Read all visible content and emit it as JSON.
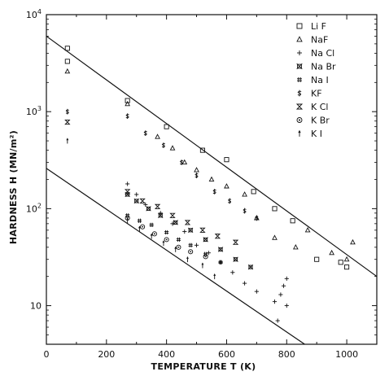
{
  "chart_data": {
    "type": "scatter",
    "title": "",
    "xlabel": "TEMPERATURE T    (K)",
    "ylabel": "HARDNESS  H (MN/m²)",
    "xlim": [
      0,
      1100
    ],
    "ylim": [
      4,
      10000
    ],
    "y_scale": "log",
    "x_ticks": [
      0,
      200,
      400,
      600,
      800,
      1000
    ],
    "x_tick_labels": [
      "0",
      "200",
      "400",
      "600",
      "800",
      "1000"
    ],
    "y_ticks": [
      10,
      100,
      1000,
      10000
    ],
    "y_tick_labels": [
      {
        "base": "",
        "exp": "",
        "text": "10"
      },
      {
        "base": "10",
        "exp": "2",
        "text": ""
      },
      {
        "base": "10",
        "exp": "3",
        "text": ""
      },
      {
        "base": "10",
        "exp": "4",
        "text": ""
      }
    ],
    "legend_position": "top-right",
    "reference_lines": [
      {
        "x": [
          0,
          1100
        ],
        "y": [
          6000,
          20
        ]
      },
      {
        "x": [
          0,
          860
        ],
        "y": [
          260,
          4
        ]
      }
    ],
    "series": [
      {
        "name": "Li F",
        "symbol": "square",
        "points": [
          [
            70,
            4500
          ],
          [
            70,
            3300
          ],
          [
            270,
            1300
          ],
          [
            400,
            700
          ],
          [
            520,
            400
          ],
          [
            600,
            320
          ],
          [
            690,
            150
          ],
          [
            760,
            100
          ],
          [
            820,
            75
          ],
          [
            900,
            30
          ],
          [
            980,
            28
          ],
          [
            1000,
            25
          ]
        ]
      },
      {
        "name": "NaF",
        "symbol": "triangle",
        "points": [
          [
            70,
            2600
          ],
          [
            270,
            1200
          ],
          [
            370,
            550
          ],
          [
            420,
            420
          ],
          [
            460,
            300
          ],
          [
            500,
            250
          ],
          [
            550,
            200
          ],
          [
            600,
            170
          ],
          [
            660,
            140
          ],
          [
            700,
            80
          ],
          [
            760,
            50
          ],
          [
            830,
            40
          ],
          [
            870,
            60
          ],
          [
            950,
            35
          ],
          [
            1000,
            30
          ],
          [
            1020,
            45
          ]
        ]
      },
      {
        "name": "Na Cl",
        "symbol": "plus",
        "points": [
          [
            270,
            180
          ],
          [
            300,
            140
          ],
          [
            330,
            110
          ],
          [
            380,
            90
          ],
          [
            420,
            70
          ],
          [
            460,
            58
          ],
          [
            500,
            42
          ],
          [
            540,
            35
          ],
          [
            580,
            28
          ],
          [
            620,
            22
          ],
          [
            660,
            17
          ],
          [
            700,
            14
          ],
          [
            760,
            11
          ],
          [
            780,
            13
          ],
          [
            790,
            16
          ],
          [
            800,
            19
          ],
          [
            770,
            7
          ],
          [
            800,
            10
          ]
        ]
      },
      {
        "name": "Na Br",
        "symbol": "square-star",
        "points": [
          [
            270,
            140
          ],
          [
            300,
            120
          ],
          [
            340,
            100
          ],
          [
            380,
            85
          ],
          [
            430,
            72
          ],
          [
            480,
            60
          ],
          [
            530,
            48
          ],
          [
            580,
            38
          ],
          [
            630,
            30
          ],
          [
            680,
            25
          ]
        ]
      },
      {
        "name": "Na I",
        "symbol": "hash",
        "points": [
          [
            270,
            85
          ],
          [
            310,
            75
          ],
          [
            350,
            68
          ],
          [
            400,
            57
          ],
          [
            440,
            48
          ],
          [
            480,
            42
          ],
          [
            530,
            34
          ],
          [
            580,
            28
          ]
        ]
      },
      {
        "name": "KF",
        "symbol": "dollar",
        "points": [
          [
            70,
            1000
          ],
          [
            270,
            900
          ],
          [
            330,
            600
          ],
          [
            390,
            450
          ],
          [
            450,
            300
          ],
          [
            500,
            220
          ],
          [
            560,
            150
          ],
          [
            610,
            120
          ],
          [
            660,
            95
          ],
          [
            700,
            80
          ]
        ]
      },
      {
        "name": "K Cl",
        "symbol": "hourglass",
        "points": [
          [
            70,
            780
          ],
          [
            270,
            150
          ],
          [
            320,
            120
          ],
          [
            370,
            105
          ],
          [
            420,
            85
          ],
          [
            470,
            72
          ],
          [
            520,
            60
          ],
          [
            570,
            52
          ],
          [
            630,
            45
          ]
        ]
      },
      {
        "name": "K Br",
        "symbol": "circle-dot",
        "points": [
          [
            270,
            80
          ],
          [
            320,
            65
          ],
          [
            360,
            55
          ],
          [
            400,
            48
          ],
          [
            440,
            40
          ],
          [
            480,
            36
          ],
          [
            530,
            32
          ]
        ]
      },
      {
        "name": "K I",
        "symbol": "arrow",
        "points": [
          [
            70,
            500
          ],
          [
            270,
            75
          ],
          [
            310,
            62
          ],
          [
            350,
            52
          ],
          [
            390,
            44
          ],
          [
            430,
            38
          ],
          [
            470,
            30
          ],
          [
            520,
            26
          ],
          [
            560,
            20
          ]
        ]
      }
    ]
  }
}
